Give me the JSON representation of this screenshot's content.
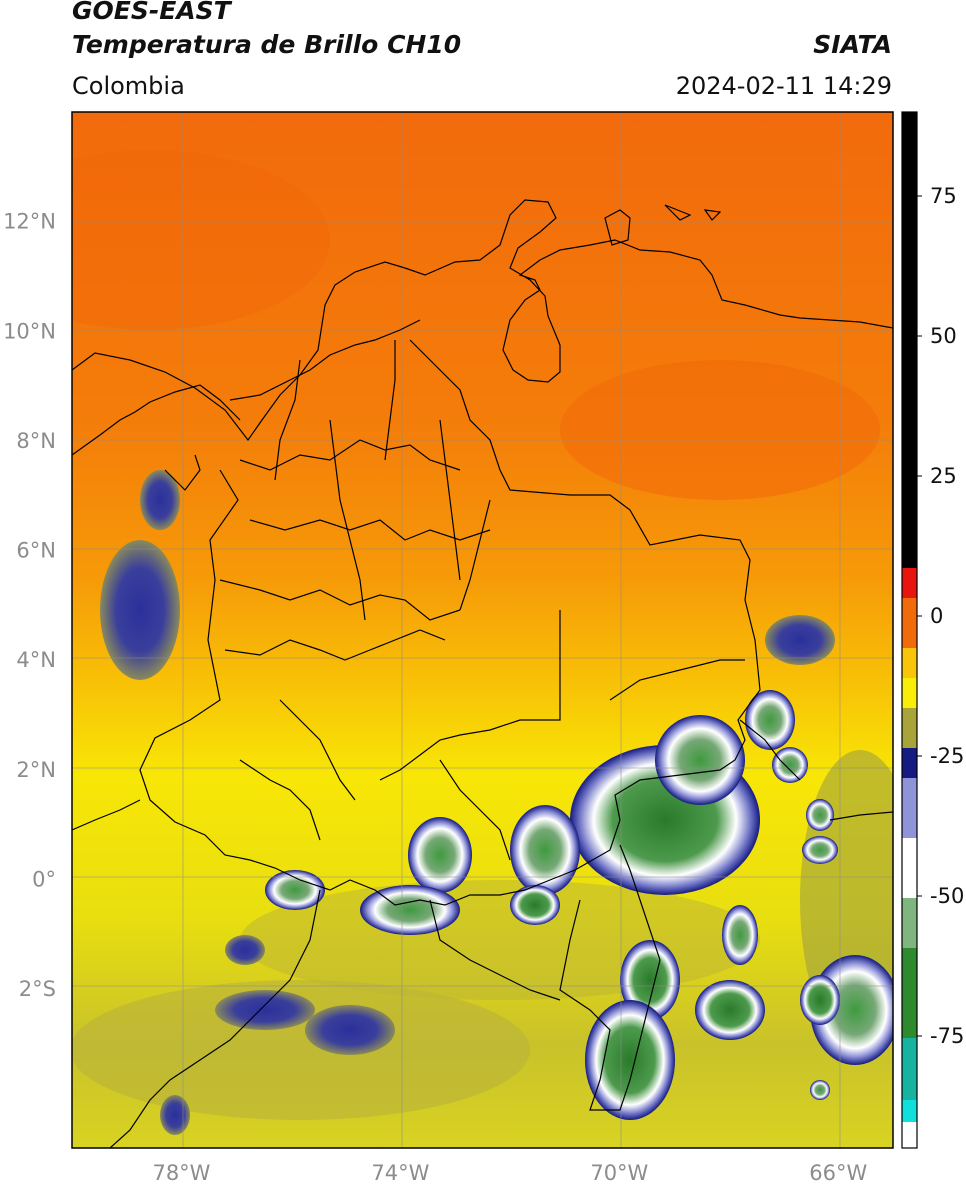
{
  "header": {
    "satellite": "GOES-EAST",
    "product": "Temperatura de Brillo CH10",
    "region": "Colombia",
    "organization": "SIATA",
    "datetime": "2024-02-11 14:29"
  },
  "axes": {
    "lat_labels": [
      {
        "value": 12,
        "label": "12°N"
      },
      {
        "value": 10,
        "label": "10°N"
      },
      {
        "value": 8,
        "label": "8°N"
      },
      {
        "value": 6,
        "label": "6°N"
      },
      {
        "value": 4,
        "label": "4°N"
      },
      {
        "value": 2,
        "label": "2°N"
      },
      {
        "value": 0,
        "label": "0°"
      },
      {
        "value": -2,
        "label": "2°S"
      }
    ],
    "lon_labels": [
      {
        "value": -78,
        "label": "78°W"
      },
      {
        "value": -74,
        "label": "74°W"
      },
      {
        "value": -70,
        "label": "70°W"
      },
      {
        "value": -66,
        "label": "66°W"
      }
    ],
    "lat_range": [
      -4.9,
      14.0
    ],
    "lon_range": [
      -80.0,
      -65.0
    ],
    "grid": true
  },
  "colorbar": {
    "range": [
      -95,
      90
    ],
    "ticks": [
      75,
      50,
      25,
      0,
      -25,
      -50,
      -75
    ],
    "colors": {
      "warm": "#000000",
      "red": "#e8140e",
      "orange": "#f26b0a",
      "yellow": "#f8ee0a",
      "olive": "#a9a43a",
      "navy": "#151b80",
      "white": "#ffffff",
      "green": "#2d8a2d",
      "cyan": "#10e0dc"
    }
  }
}
